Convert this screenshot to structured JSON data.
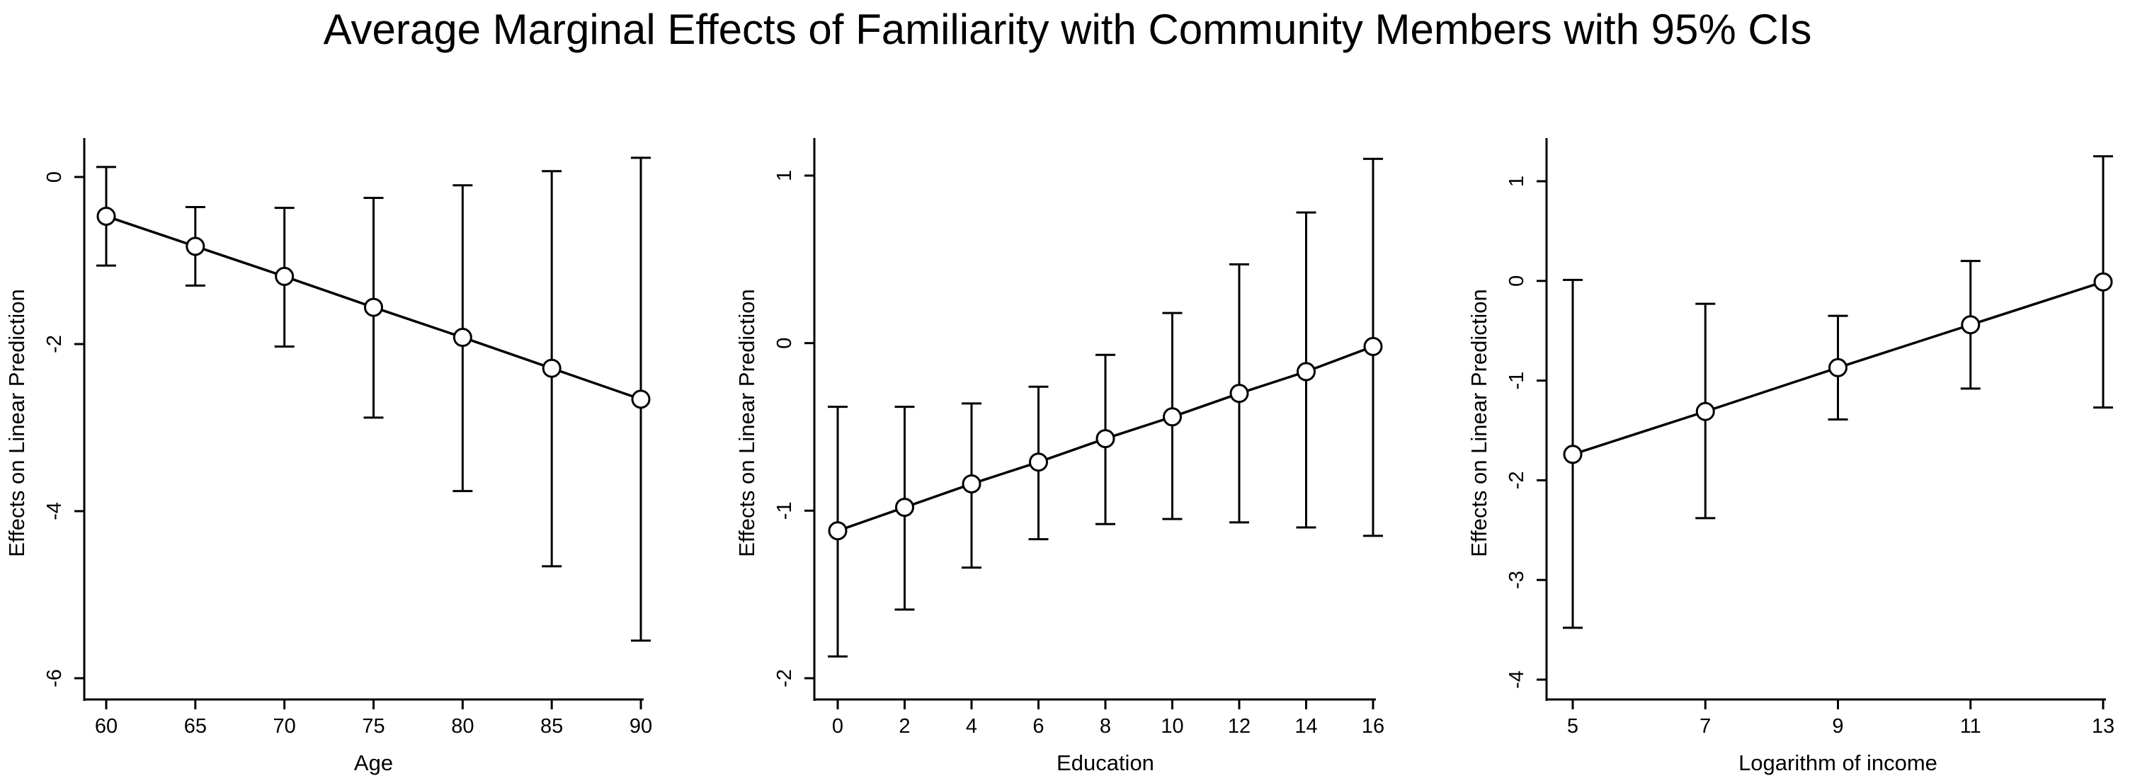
{
  "title": "Average Marginal Effects of Familiarity with Community Members with 95% CIs",
  "chart_data": [
    {
      "type": "line",
      "xlabel": "Age",
      "ylabel": "Effects on Linear Prediction",
      "x": [
        60,
        65,
        70,
        75,
        80,
        85,
        90
      ],
      "y": [
        -0.47,
        -0.83,
        -1.19,
        -1.56,
        -1.92,
        -2.29,
        -2.66
      ],
      "ci_low": [
        -1.06,
        -1.3,
        -2.03,
        -2.88,
        -3.76,
        -4.66,
        -5.55
      ],
      "ci_high": [
        0.12,
        -0.36,
        -0.37,
        -0.25,
        -0.1,
        0.07,
        0.23
      ],
      "xticks": [
        60,
        65,
        70,
        75,
        80,
        85,
        90
      ],
      "yticks": [
        0,
        -2,
        -4,
        -6
      ],
      "xlim": [
        60,
        90
      ],
      "ylim": [
        -6,
        0
      ],
      "grid": false
    },
    {
      "type": "line",
      "xlabel": "Education",
      "ylabel": "Effects on Linear Prediction",
      "x": [
        0,
        2,
        4,
        6,
        8,
        10,
        12,
        14,
        16
      ],
      "y": [
        -1.12,
        -0.98,
        -0.84,
        -0.71,
        -0.57,
        -0.44,
        -0.3,
        -0.17,
        -0.02
      ],
      "ci_low": [
        -1.87,
        -1.59,
        -1.34,
        -1.17,
        -1.08,
        -1.05,
        -1.07,
        -1.1,
        -1.15
      ],
      "ci_high": [
        -0.38,
        -0.38,
        -0.36,
        -0.26,
        -0.07,
        0.18,
        0.47,
        0.78,
        1.1
      ],
      "xticks": [
        0,
        2,
        4,
        6,
        8,
        10,
        12,
        14,
        16
      ],
      "yticks": [
        1,
        0,
        -1,
        -2
      ],
      "xlim": [
        0,
        16
      ],
      "ylim": [
        -2,
        1
      ],
      "grid": false
    },
    {
      "type": "line",
      "xlabel": "Logarithm of income",
      "ylabel": "Effects on Linear Prediction",
      "x": [
        5,
        7,
        9,
        11,
        13
      ],
      "y": [
        -1.74,
        -1.31,
        -0.87,
        -0.44,
        -0.01
      ],
      "ci_low": [
        -3.48,
        -2.38,
        -1.39,
        -1.08,
        -1.27
      ],
      "ci_high": [
        0.01,
        -0.23,
        -0.35,
        0.2,
        1.25
      ],
      "xticks": [
        5,
        7,
        9,
        11,
        13
      ],
      "yticks": [
        1,
        0,
        -1,
        -2,
        -3,
        -4
      ],
      "xlim": [
        5,
        13
      ],
      "ylim": [
        -4,
        1
      ],
      "grid": false
    }
  ]
}
